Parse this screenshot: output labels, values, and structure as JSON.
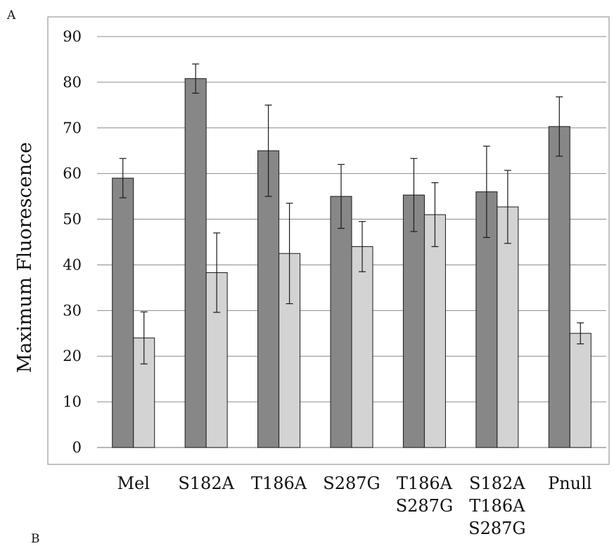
{
  "panel_label": "A",
  "panel_label_next": "B",
  "chart_data": {
    "type": "bar",
    "title": "",
    "xlabel": "",
    "ylabel": "Maximum Fluorescence",
    "ylim": [
      0,
      90
    ],
    "yticks": [
      0,
      10,
      20,
      30,
      40,
      50,
      60,
      70,
      80,
      90
    ],
    "grid": true,
    "legend": "none",
    "categories": [
      [
        "Mel"
      ],
      [
        "S182A"
      ],
      [
        "T186A"
      ],
      [
        "S287G"
      ],
      [
        "T186A",
        "S287G"
      ],
      [
        "S182A",
        "T186A",
        "S287G"
      ],
      [
        "Pnull"
      ]
    ],
    "series": [
      {
        "color": "#878787",
        "values": [
          59,
          80.8,
          65,
          55,
          55.3,
          56,
          70.3
        ],
        "error": [
          4.3,
          3.2,
          10,
          7,
          8,
          10,
          6.5
        ]
      },
      {
        "color": "#d3d3d3",
        "values": [
          24,
          38.3,
          42.5,
          44,
          51,
          52.7,
          25
        ],
        "error": [
          5.7,
          8.7,
          11,
          5.5,
          7,
          8,
          2.3
        ]
      }
    ]
  }
}
